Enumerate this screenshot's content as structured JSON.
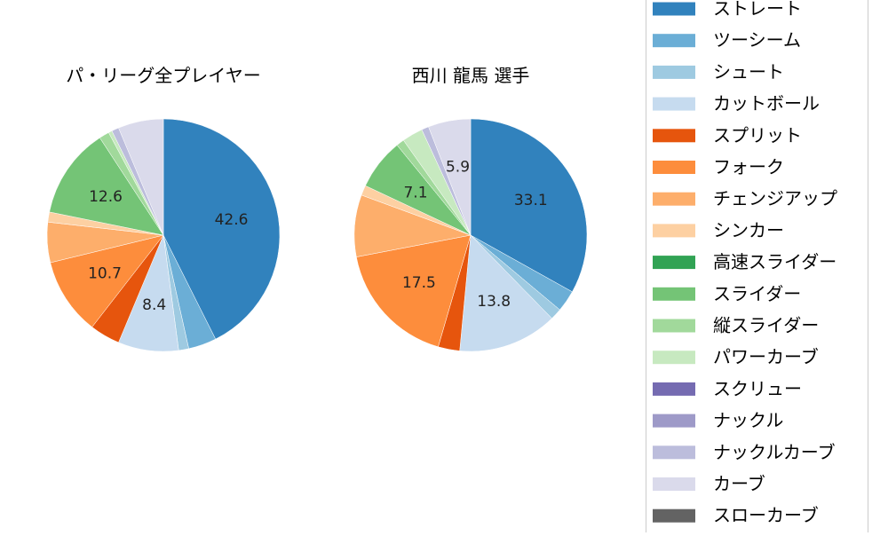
{
  "colors": {
    "ストレート": "#3182bd",
    "ツーシーム": "#6baed6",
    "シュート": "#9ecae1",
    "カットボール": "#c6dbef",
    "スプリット": "#e6550d",
    "フォーク": "#fd8d3c",
    "チェンジアップ": "#fdae6b",
    "シンカー": "#fdd0a2",
    "高速スライダー": "#31a354",
    "スライダー": "#74c476",
    "縦スライダー": "#a1d99b",
    "パワーカーブ": "#c7e9c0",
    "スクリュー": "#756bb1",
    "ナックル": "#9e9ac8",
    "ナックルカーブ": "#bcbddc",
    "カーブ": "#dadaeb",
    "スローカーブ": "#636363"
  },
  "legend": {
    "entries": [
      "ストレート",
      "ツーシーム",
      "シュート",
      "カットボール",
      "スプリット",
      "フォーク",
      "チェンジアップ",
      "シンカー",
      "高速スライダー",
      "スライダー",
      "縦スライダー",
      "パワーカーブ",
      "スクリュー",
      "ナックル",
      "ナックルカーブ",
      "カーブ",
      "スローカーブ"
    ]
  },
  "chart_data": [
    {
      "type": "pie",
      "title": "パ・リーグ全プレイヤー",
      "slices": [
        {
          "label": "ストレート",
          "value": 42.6,
          "shown": "42.6"
        },
        {
          "label": "ツーシーム",
          "value": 3.9,
          "shown": ""
        },
        {
          "label": "シュート",
          "value": 1.4,
          "shown": ""
        },
        {
          "label": "カットボール",
          "value": 8.4,
          "shown": "8.4"
        },
        {
          "label": "スプリット",
          "value": 4.2,
          "shown": ""
        },
        {
          "label": "フォーク",
          "value": 10.7,
          "shown": "10.7"
        },
        {
          "label": "チェンジアップ",
          "value": 5.6,
          "shown": ""
        },
        {
          "label": "シンカー",
          "value": 1.4,
          "shown": ""
        },
        {
          "label": "スライダー",
          "value": 12.6,
          "shown": "12.6"
        },
        {
          "label": "縦スライダー",
          "value": 1.4,
          "shown": ""
        },
        {
          "label": "パワーカーブ",
          "value": 0.5,
          "shown": ""
        },
        {
          "label": "ナックルカーブ",
          "value": 1.0,
          "shown": ""
        },
        {
          "label": "カーブ",
          "value": 6.3,
          "shown": ""
        }
      ]
    },
    {
      "type": "pie",
      "title": "西川 龍馬  選手",
      "slices": [
        {
          "label": "ストレート",
          "value": 33.1,
          "shown": "33.1"
        },
        {
          "label": "ツーシーム",
          "value": 3.0,
          "shown": ""
        },
        {
          "label": "シュート",
          "value": 1.6,
          "shown": ""
        },
        {
          "label": "カットボール",
          "value": 13.8,
          "shown": "13.8"
        },
        {
          "label": "スプリット",
          "value": 3.0,
          "shown": ""
        },
        {
          "label": "フォーク",
          "value": 17.5,
          "shown": "17.5"
        },
        {
          "label": "チェンジアップ",
          "value": 8.6,
          "shown": ""
        },
        {
          "label": "シンカー",
          "value": 1.4,
          "shown": ""
        },
        {
          "label": "スライダー",
          "value": 7.1,
          "shown": "7.1"
        },
        {
          "label": "縦スライダー",
          "value": 1.1,
          "shown": ""
        },
        {
          "label": "パワーカーブ",
          "value": 2.9,
          "shown": ""
        },
        {
          "label": "ナックルカーブ",
          "value": 1.0,
          "shown": ""
        },
        {
          "label": "カーブ",
          "value": 5.9,
          "shown": "5.9"
        }
      ]
    }
  ]
}
